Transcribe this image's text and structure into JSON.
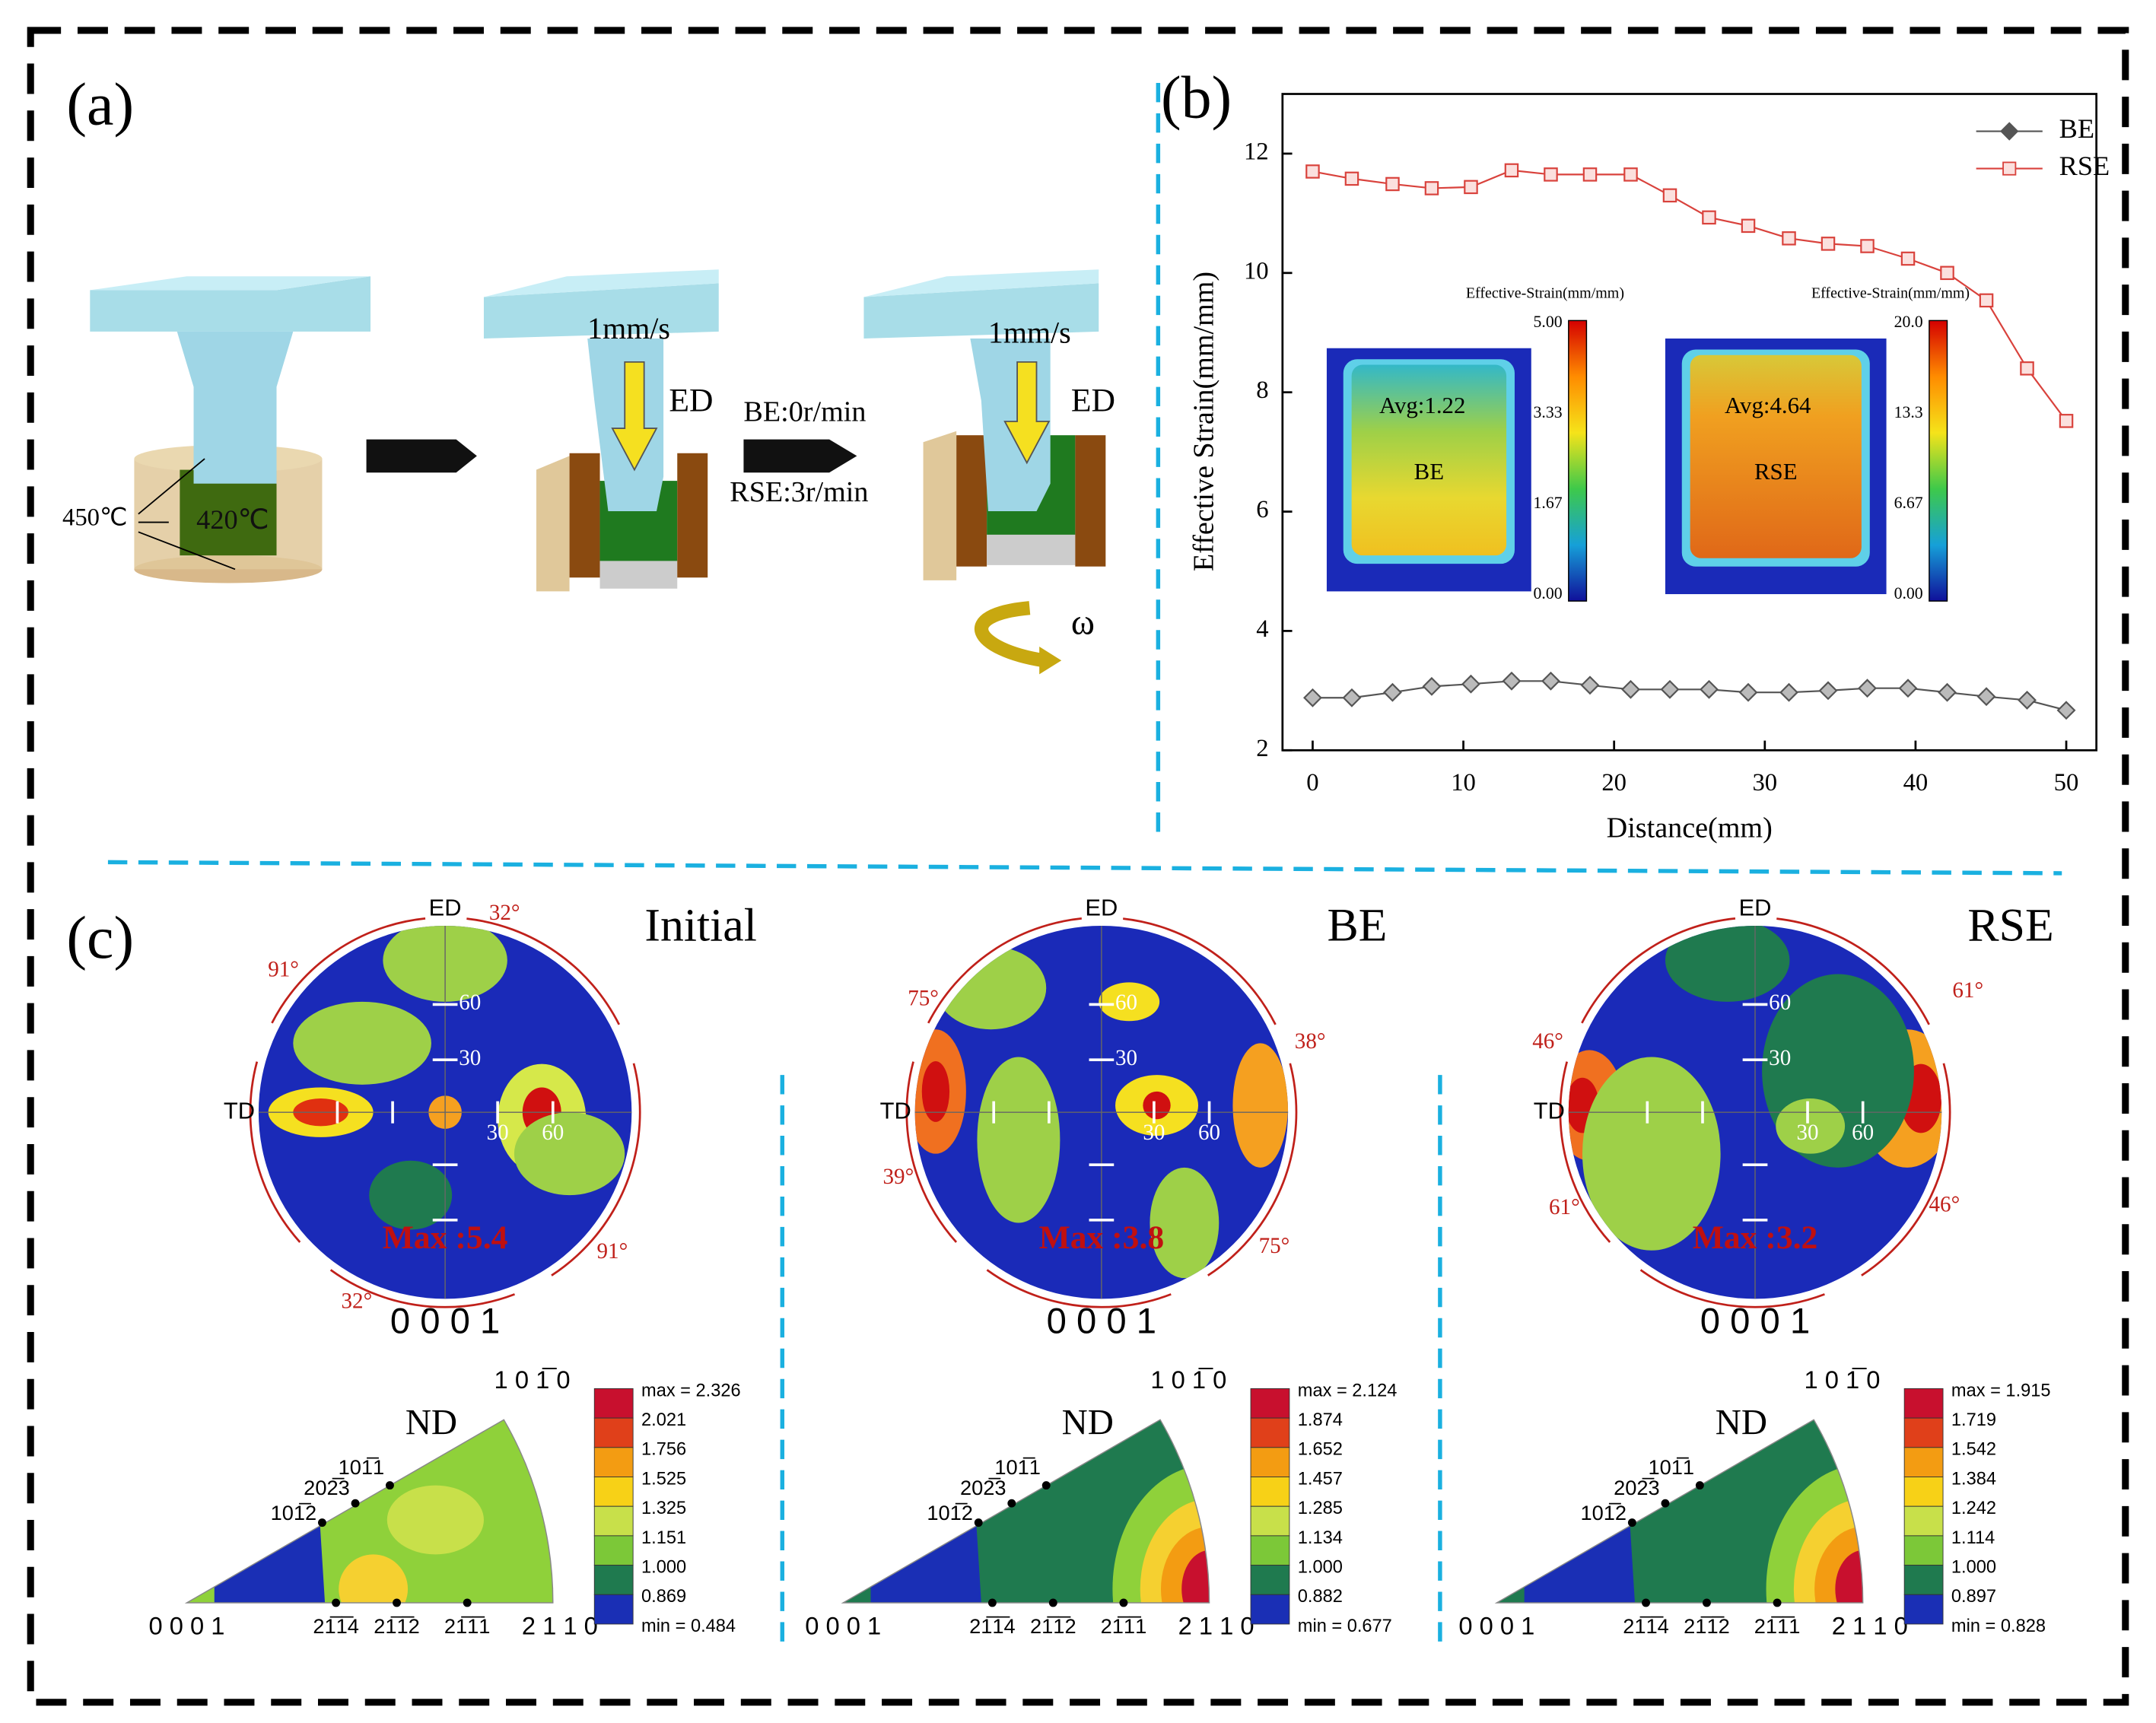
{
  "panel_a": {
    "label": "(a)",
    "speed": [
      "1mm/s",
      "1mm/s"
    ],
    "direction": [
      "ED",
      "ED"
    ],
    "be_rate": "BE:0r/min",
    "rse_rate": "RSE:3r/min",
    "die_temp": "450℃",
    "billet_temp": "420℃",
    "rotation": "ω"
  },
  "chart_data": {
    "type": "line",
    "panel_label": "(b)",
    "x_label": "Distance(mm)",
    "y_label": "Effective Strain(mm/mm)",
    "x": [
      0,
      2.6,
      5.3,
      7.9,
      10.5,
      13.2,
      15.8,
      18.4,
      21.1,
      23.7,
      26.3,
      28.9,
      31.6,
      34.2,
      36.8,
      39.5,
      42.1,
      44.7,
      47.4,
      50
    ],
    "series": [
      {
        "name": "BE",
        "color": "#555555",
        "values": [
          2.88,
          2.88,
          2.97,
          3.07,
          3.11,
          3.16,
          3.16,
          3.09,
          3.02,
          3.02,
          3.02,
          2.97,
          2.97,
          3.0,
          3.04,
          3.04,
          2.97,
          2.9,
          2.84,
          2.67
        ]
      },
      {
        "name": "RSE",
        "color": "#d9423c",
        "values": [
          11.7,
          11.58,
          11.49,
          11.42,
          11.44,
          11.72,
          11.65,
          11.65,
          11.65,
          11.3,
          10.93,
          10.79,
          10.58,
          10.49,
          10.45,
          10.24,
          10.0,
          9.54,
          8.4,
          7.52
        ]
      }
    ],
    "xlim": [
      -2,
      52
    ],
    "ylim": [
      2,
      13
    ],
    "xticks": [
      0,
      10,
      20,
      30,
      40,
      50
    ],
    "yticks": [
      2,
      4,
      6,
      8,
      10,
      12
    ],
    "legend": "upper right",
    "insets": [
      {
        "title": "Effective-Strain(mm/mm)",
        "avg": "Avg:1.22",
        "name": "BE",
        "scale": [
          "5.00",
          "3.33",
          "1.67",
          "0.00"
        ]
      },
      {
        "title": "Effective-Strain(mm/mm)",
        "avg": "Avg:4.64",
        "name": "RSE",
        "scale": [
          "20.0",
          "13.3",
          "6.67",
          "0.00"
        ]
      }
    ]
  },
  "panel_c": {
    "label": "(c)",
    "columns": [
      {
        "title": "Initial",
        "pole_figure": {
          "top": "ED",
          "left": "TD",
          "vertical_ticks": [
            "60",
            "30"
          ],
          "horizontal_ticks": [
            "30",
            "60"
          ],
          "max": "Max :5.4",
          "angles": [
            "32°",
            "91°",
            "91°",
            "32°"
          ],
          "plane": "0 0 0 1"
        },
        "ipf": {
          "title": "ND",
          "corners": [
            "0 0 0 1",
            "2 1 1 0",
            "1 0 1̅ 0"
          ],
          "poles": [
            "101̅2",
            "202̅3",
            "101̅1",
            "21̅1̅4",
            "21̅1̅2",
            "21̅1̅1"
          ],
          "legend": [
            "max = 2.326",
            "2.021",
            "1.756",
            "1.525",
            "1.325",
            "1.151",
            "1.000",
            "0.869",
            "min = 0.484"
          ]
        }
      },
      {
        "title": "BE",
        "pole_figure": {
          "top": "ED",
          "left": "TD",
          "vertical_ticks": [
            "60",
            "30"
          ],
          "horizontal_ticks": [
            "30",
            "60"
          ],
          "max": "Max :3.8",
          "angles": [
            "75°",
            "38°",
            "39°",
            "75°"
          ],
          "plane": "0 0 0 1"
        },
        "ipf": {
          "title": "ND",
          "corners": [
            "0 0 0 1",
            "2 1 1 0",
            "1 0 1̅ 0"
          ],
          "poles": [
            "101̅2",
            "202̅3",
            "101̅1",
            "21̅1̅4",
            "21̅1̅2",
            "21̅1̅1"
          ],
          "legend": [
            "max = 2.124",
            "1.874",
            "1.652",
            "1.457",
            "1.285",
            "1.134",
            "1.000",
            "0.882",
            "min = 0.677"
          ]
        }
      },
      {
        "title": "RSE",
        "pole_figure": {
          "top": "ED",
          "left": "TD",
          "vertical_ticks": [
            "60",
            "30"
          ],
          "horizontal_ticks": [
            "30",
            "60"
          ],
          "max": "Max :3.2",
          "angles": [
            "61°",
            "46°",
            "61°",
            "46°"
          ],
          "plane": "0 0 0 1"
        },
        "ipf": {
          "title": "ND",
          "corners": [
            "0 0 0 1",
            "2 1 1 0",
            "1 0 1̅ 0"
          ],
          "poles": [
            "101̅2",
            "202̅3",
            "101̅1",
            "21̅1̅4",
            "21̅1̅2",
            "21̅1̅1"
          ],
          "legend": [
            "max = 1.915",
            "1.719",
            "1.542",
            "1.384",
            "1.242",
            "1.114",
            "1.000",
            "0.897",
            "min = 0.828"
          ]
        }
      }
    ]
  }
}
